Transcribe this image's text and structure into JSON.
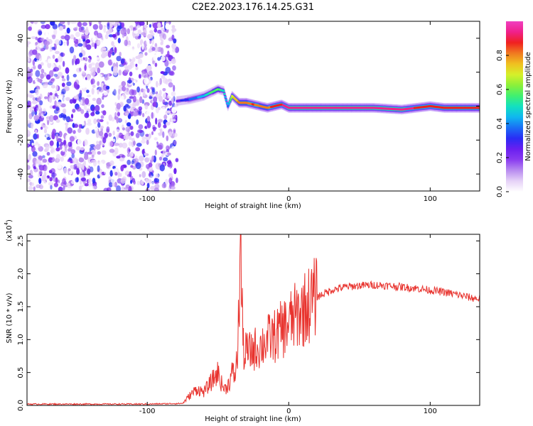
{
  "title": "C2E2.2023.176.14.25.G31",
  "colors": {
    "snr_line": "#e8332e",
    "colormap": [
      "#ffffff",
      "#e6d2f7",
      "#b98cf0",
      "#8a3cf0",
      "#6a1ff0",
      "#2a2cf5",
      "#1a6ef5",
      "#10b7f0",
      "#12e0c0",
      "#40f070",
      "#8cf03a",
      "#d6f02a",
      "#f0c020",
      "#f07a20",
      "#f02020",
      "#f0208a",
      "#f040c0"
    ]
  },
  "chart_data": [
    {
      "type": "heatmap",
      "xlabel": "Height of straight line (km)",
      "ylabel": "Frequency (Hz)",
      "xlim": [
        -185,
        135
      ],
      "ylim": [
        -50,
        50
      ],
      "xticks": [
        -100,
        0,
        100
      ],
      "xtick_labels": [
        "-100",
        "0",
        "100"
      ],
      "yticks": [
        -40,
        -20,
        0,
        20,
        40
      ],
      "ytick_labels": [
        "-40",
        "-20",
        "0",
        "20",
        "40"
      ],
      "noise_region_x": [
        -185,
        -79
      ],
      "ridge": {
        "x": [
          -79,
          -70,
          -60,
          -55,
          -50,
          -46,
          -43,
          -40,
          -35,
          -30,
          -25,
          -20,
          -15,
          -10,
          -5,
          0,
          10,
          30,
          60,
          80,
          90,
          100,
          110,
          120,
          135
        ],
        "y": [
          3,
          4,
          6,
          8,
          10,
          9,
          0,
          6,
          2,
          2,
          1,
          0,
          -1,
          0,
          1,
          -1,
          -1,
          -1,
          -1,
          -2,
          -1,
          0,
          -1,
          -1,
          -1
        ],
        "amplitude": [
          0.25,
          0.35,
          0.45,
          0.55,
          0.6,
          0.5,
          0.4,
          0.7,
          0.8,
          0.8,
          0.85,
          0.8,
          0.8,
          0.9,
          0.9,
          0.95,
          0.95,
          0.95,
          0.95,
          0.95,
          0.9,
          0.9,
          0.9,
          0.9,
          0.9
        ]
      },
      "colorbar": {
        "label": "Normalized spectral amplitude",
        "range": [
          0,
          1
        ],
        "ticks": [
          0,
          0.2,
          0.4,
          0.6,
          0.8
        ],
        "tick_labels": [
          "0.0",
          "0.2",
          "0.4",
          "0.6",
          "0.8"
        ]
      }
    },
    {
      "type": "line",
      "xlabel": "Height of straight line (km)",
      "ylabel": "SNR (10 * v/v)",
      "y_multiplier": "(x10",
      "y_multiplier_exp": "4",
      "y_multiplier_close": ")",
      "xlim": [
        -185,
        135
      ],
      "ylim": [
        0,
        2.6
      ],
      "xticks": [
        -100,
        0,
        100
      ],
      "xtick_labels": [
        "-100",
        "0",
        "100"
      ],
      "yticks": [
        0,
        0.5,
        1.0,
        1.5,
        2.0,
        2.5
      ],
      "ytick_labels": [
        "0.0",
        "0.5",
        "1.0",
        "1.5",
        "2.0",
        "2.5"
      ],
      "series": [
        {
          "x": [
            -185,
            -100,
            -75,
            -70,
            -65,
            -60,
            -55,
            -50,
            -47,
            -45,
            -42,
            -40,
            -38,
            -36,
            -34,
            -33,
            -32,
            -31,
            -30,
            -28,
            -25,
            -20,
            -15,
            -10,
            -5,
            0,
            5,
            10,
            15,
            20,
            25,
            30,
            40,
            50,
            60,
            70,
            80,
            90,
            100,
            110,
            120,
            130,
            135
          ],
          "y": [
            0.02,
            0.02,
            0.03,
            0.15,
            0.25,
            0.2,
            0.35,
            0.5,
            0.3,
            0.25,
            0.35,
            0.5,
            0.45,
            0.8,
            2.55,
            1.4,
            0.9,
            0.7,
            0.85,
            0.8,
            0.85,
            0.9,
            1.0,
            1.05,
            1.15,
            1.25,
            1.35,
            1.45,
            1.55,
            1.65,
            1.7,
            1.75,
            1.8,
            1.82,
            1.83,
            1.82,
            1.8,
            1.78,
            1.75,
            1.72,
            1.68,
            1.63,
            1.62
          ]
        }
      ]
    }
  ]
}
